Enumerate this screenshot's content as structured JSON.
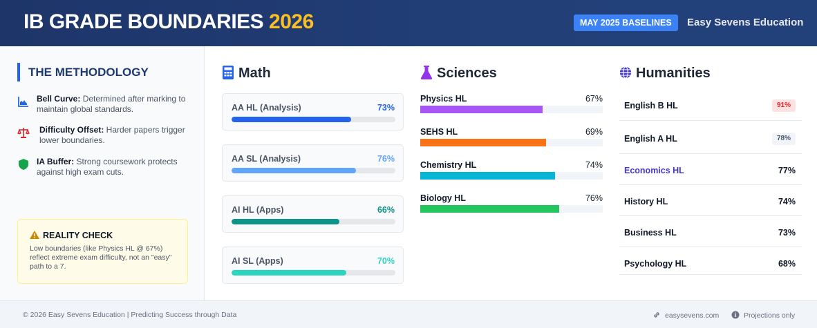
{
  "header": {
    "title_main": "IB GRADE BOUNDARIES",
    "title_year": "2026",
    "badge": "MAY 2025 BASELINES",
    "brand": "Easy Sevens Education",
    "accent_color": "#fbbf24"
  },
  "methodology": {
    "title": "THE METHODOLOGY",
    "items": [
      {
        "icon": "chart-icon",
        "term": "Bell Curve:",
        "text": " Determined after marking to maintain global standards."
      },
      {
        "icon": "scale-icon",
        "term": "Difficulty Offset:",
        "text": " Harder papers trigger lower boundaries."
      },
      {
        "icon": "shield-icon",
        "term": "IA Buffer:",
        "text": " Strong coursework protects against high exam cuts."
      }
    ],
    "reality": {
      "title": "REALITY CHECK",
      "body": "Low boundaries (like Physics HL @ 67%) reflect extreme exam difficulty, not an \"easy\" path to a 7."
    }
  },
  "math": {
    "title": "Math",
    "icon": "calculator-icon",
    "items": [
      {
        "label": "AA HL (Analysis)",
        "value": "73%",
        "percent": 73,
        "color": "#2563eb"
      },
      {
        "label": "AA SL (Analysis)",
        "value": "76%",
        "percent": 76,
        "color": "#60a5fa"
      },
      {
        "label": "AI HL (Apps)",
        "value": "66%",
        "percent": 66,
        "color": "#0d9488"
      },
      {
        "label": "AI SL (Apps)",
        "value": "70%",
        "percent": 70,
        "color": "#2dd4bf"
      }
    ]
  },
  "sciences": {
    "title": "Sciences",
    "icon": "flask-icon",
    "items": [
      {
        "label": "Physics HL",
        "value": "67%",
        "percent": 67,
        "color": "#a855f7"
      },
      {
        "label": "SEHS HL",
        "value": "69%",
        "percent": 69,
        "color": "#f97316"
      },
      {
        "label": "Chemistry HL",
        "value": "74%",
        "percent": 74,
        "color": "#06b6d4"
      },
      {
        "label": "Biology HL",
        "value": "76%",
        "percent": 76,
        "color": "#22c55e"
      }
    ]
  },
  "humanities": {
    "title": "Humanities",
    "icon": "globe-icon",
    "items": [
      {
        "label": "English B HL",
        "value": "91%",
        "style": "pill-red"
      },
      {
        "label": "English A HL",
        "value": "78%",
        "style": "pill-gray"
      },
      {
        "label": "Economics HL",
        "value": "77%",
        "style": "highlight"
      },
      {
        "label": "History HL",
        "value": "74%",
        "style": "plain"
      },
      {
        "label": "Business HL",
        "value": "73%",
        "style": "plain"
      },
      {
        "label": "Psychology HL",
        "value": "68%",
        "style": "plain"
      }
    ]
  },
  "footer": {
    "copyright": "© 2026 Easy Sevens Education | Predicting Success through Data",
    "link": "easysevens.com",
    "note": "Projections only"
  }
}
